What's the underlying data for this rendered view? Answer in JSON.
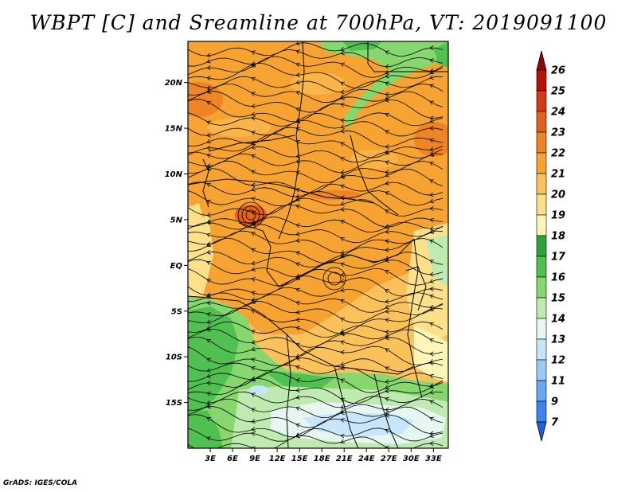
{
  "title": "WBPT [C] and Sreamline at 700hPa, VT: 2019091100",
  "credit": "GrADS: IGES/COLA",
  "map": {
    "lat_labels": [
      "20N",
      "15N",
      "10N",
      "5N",
      "EQ",
      "5S",
      "10S",
      "15S"
    ],
    "lat_values": [
      20,
      15,
      10,
      5,
      0,
      -5,
      -10,
      -15
    ],
    "lon_labels": [
      "3E",
      "6E",
      "9E",
      "12E",
      "15E",
      "18E",
      "21E",
      "24E",
      "27E",
      "30E",
      "33E"
    ],
    "lon_values": [
      3,
      6,
      9,
      12,
      15,
      18,
      21,
      24,
      27,
      30,
      33
    ],
    "lon_range": [
      0,
      35
    ],
    "lat_range": [
      -20,
      24.5
    ]
  },
  "colorbar": {
    "levels": [
      "7",
      "9",
      "11",
      "12",
      "13",
      "14",
      "15",
      "16",
      "17",
      "18",
      "19",
      "20",
      "21",
      "22",
      "23",
      "24",
      "25",
      "26"
    ],
    "colors": [
      "#1f5fdc",
      "#3e82f0",
      "#6aa6f5",
      "#9ccaf8",
      "#c8e6fb",
      "#e6f7f2",
      "#bfeab0",
      "#86d86e",
      "#50c050",
      "#2ea43a",
      "#fef6b8",
      "#fde08a",
      "#fbc25c",
      "#f6a331",
      "#ef8424",
      "#e2601a",
      "#d23a12",
      "#b51208",
      "#8e0606"
    ]
  }
}
